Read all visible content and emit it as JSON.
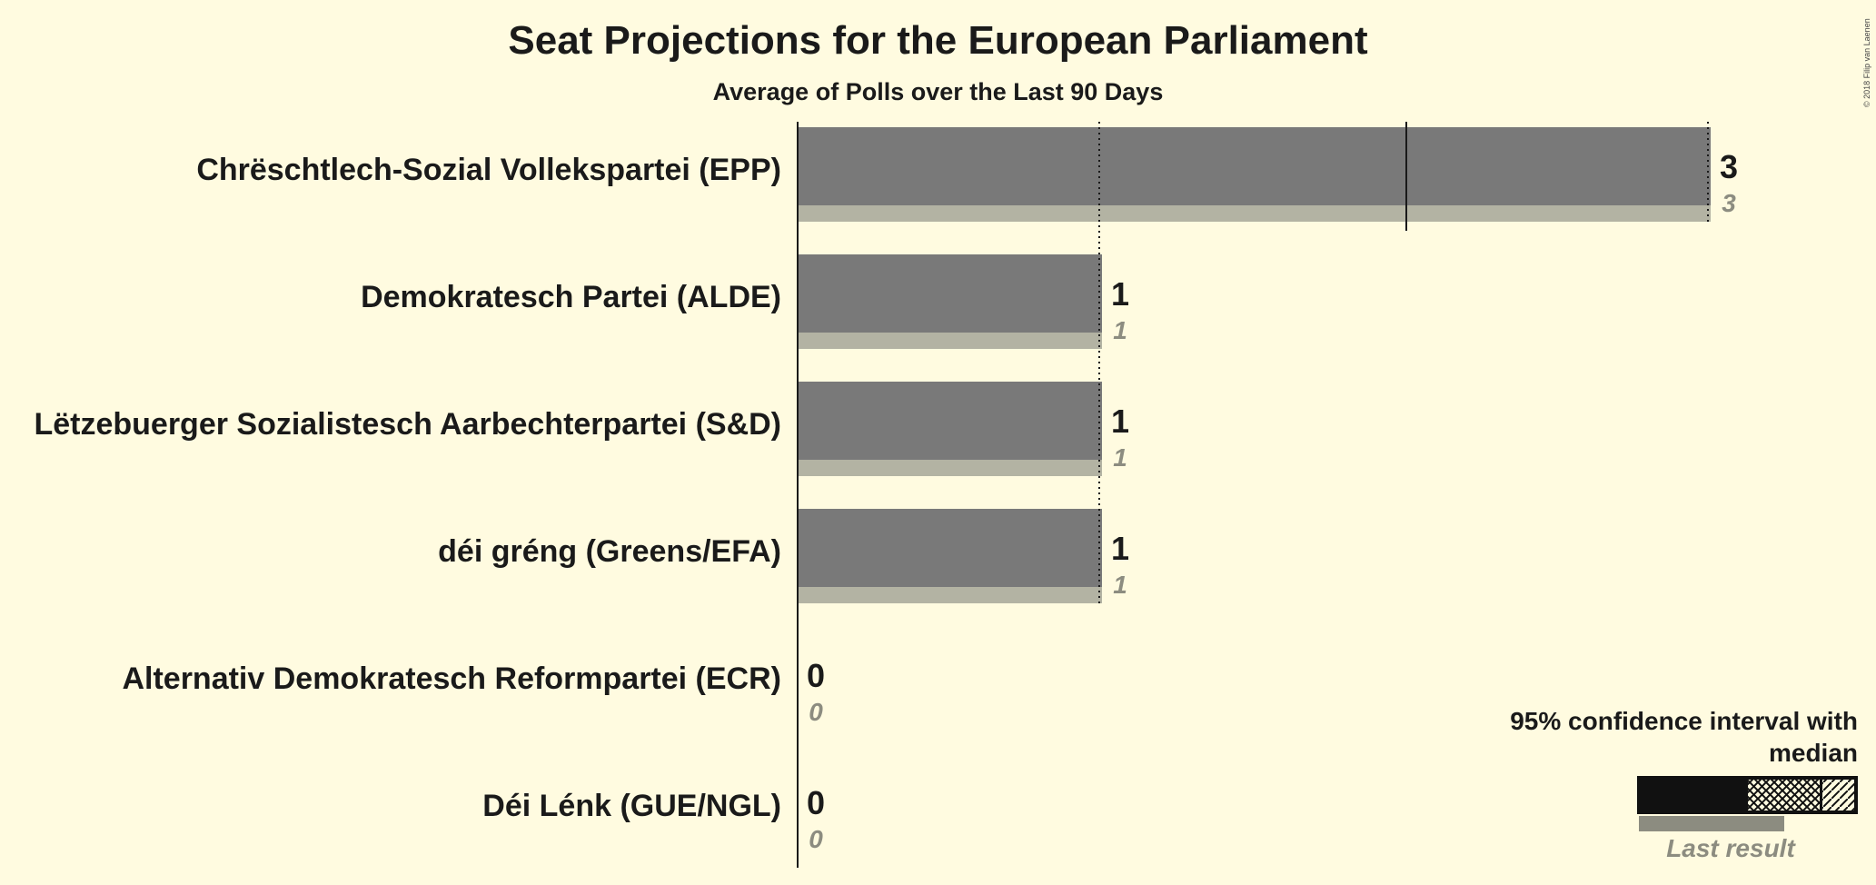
{
  "copyright": "© 2018 Filip van Laenen",
  "chart_data": {
    "type": "bar",
    "orientation": "horizontal",
    "title": "Seat Projections for the European Parliament",
    "subtitle": "Average of Polls over the Last 90 Days",
    "xlim": [
      0,
      3
    ],
    "categories": [
      "Chrëschtlech-Sozial Vollekspartei (EPP)",
      "Demokratesch Partei (ALDE)",
      "Lëtzebuerger Sozialistesch Aarbechterpartei (S&D)",
      "déi gréng (Greens/EFA)",
      "Alternativ Demokratesch Reformpartei (ECR)",
      "Déi Lénk (GUE/NGL)"
    ],
    "series": [
      {
        "name": "Median",
        "values": [
          3,
          1,
          1,
          1,
          0,
          0
        ]
      },
      {
        "name": "Last result",
        "values": [
          3,
          1,
          1,
          1,
          0,
          0
        ]
      }
    ],
    "value_labels": [
      "3",
      "1",
      "1",
      "1",
      "0",
      "0"
    ],
    "last_labels": [
      "3",
      "1",
      "1",
      "1",
      "0",
      "0"
    ],
    "legend": {
      "title": "95% confidence interval with median",
      "last_result": "Last result",
      "position": "bottom-right"
    },
    "colors": {
      "background": "#fffbe0",
      "bar": "#797979",
      "last_result_bar": "#b3b3a3",
      "text": "#1a1a1a",
      "last_text": "#8c8c80"
    }
  }
}
